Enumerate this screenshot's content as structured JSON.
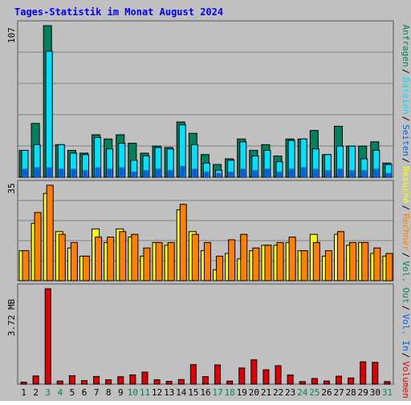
{
  "title": "Tages-Statistik im Monat August 2024",
  "colors": {
    "background": "#c0c0c0",
    "title": "#0000ff",
    "anfragen": "#00805c",
    "dateien": "#00e0ff",
    "seiten": "#0060e0",
    "besuche": "#ffff00",
    "rechner": "#ff8000",
    "volumen": "#e00000",
    "grid": "#808080",
    "weekend_day": "#008060",
    "weekday_day": "#000000"
  },
  "chart_data": [
    {
      "type": "bar",
      "panel": "top",
      "ymax_label": "107",
      "ymax": 107,
      "days": [
        "1",
        "2",
        "3",
        "4",
        "5",
        "6",
        "7",
        "8",
        "9",
        "10",
        "11",
        "12",
        "13",
        "14",
        "15",
        "16",
        "17",
        "18",
        "19",
        "20",
        "21",
        "22",
        "23",
        "24",
        "25",
        "26",
        "27",
        "28",
        "29",
        "30",
        "31"
      ],
      "weekend": [
        3,
        4,
        10,
        11,
        17,
        18,
        24,
        25,
        31
      ],
      "series": [
        {
          "name": "Anfragen",
          "values": [
            19,
            38,
            107,
            23,
            19,
            17,
            30,
            27,
            30,
            24,
            17,
            22,
            21,
            39,
            31,
            16,
            9,
            13,
            27,
            19,
            23,
            15,
            27,
            27,
            33,
            16,
            36,
            22,
            22,
            25,
            10
          ]
        },
        {
          "name": "Dateien",
          "values": [
            19,
            23,
            89,
            23,
            17,
            16,
            28,
            20,
            24,
            12,
            15,
            21,
            20,
            37,
            23,
            10,
            5,
            12,
            25,
            15,
            19,
            11,
            26,
            27,
            20,
            16,
            22,
            22,
            13,
            19,
            9
          ]
        },
        {
          "name": "Seiten",
          "values": [
            6,
            7,
            7,
            6,
            6,
            5,
            7,
            6,
            7,
            4,
            5,
            6,
            5,
            8,
            6,
            4,
            3,
            4,
            6,
            5,
            6,
            4,
            6,
            7,
            6,
            5,
            6,
            5,
            5,
            6,
            3
          ]
        }
      ],
      "legend": [
        "Anfragen",
        "Dateien",
        "Seiten"
      ]
    },
    {
      "type": "bar",
      "panel": "middle",
      "ymax_label": "35",
      "ymax": 35,
      "days": [
        "1",
        "2",
        "3",
        "4",
        "5",
        "6",
        "7",
        "8",
        "9",
        "10",
        "11",
        "12",
        "13",
        "14",
        "15",
        "16",
        "17",
        "18",
        "19",
        "20",
        "21",
        "22",
        "23",
        "24",
        "25",
        "26",
        "27",
        "28",
        "29",
        "30",
        "31"
      ],
      "series": [
        {
          "name": "Besuche",
          "values": [
            11,
            21,
            32,
            18,
            12,
            9,
            19,
            14,
            19,
            16,
            9,
            14,
            13,
            26,
            18,
            11,
            4,
            10,
            8,
            11,
            13,
            13,
            14,
            11,
            17,
            9,
            17,
            13,
            14,
            10,
            9
          ]
        },
        {
          "name": "Rechner",
          "values": [
            11,
            25,
            35,
            17,
            14,
            9,
            16,
            16,
            18,
            17,
            12,
            14,
            14,
            28,
            17,
            14,
            9,
            15,
            17,
            12,
            13,
            14,
            16,
            11,
            14,
            11,
            18,
            14,
            14,
            12,
            10
          ]
        }
      ],
      "legend": [
        "Besuche",
        "Rechner"
      ]
    },
    {
      "type": "bar",
      "panel": "bottom",
      "ymax_label": "3.72 MB",
      "ymax": 3.72,
      "days": [
        "1",
        "2",
        "3",
        "4",
        "5",
        "6",
        "7",
        "8",
        "9",
        "10",
        "11",
        "12",
        "13",
        "14",
        "15",
        "16",
        "17",
        "18",
        "19",
        "20",
        "21",
        "22",
        "23",
        "24",
        "25",
        "26",
        "27",
        "28",
        "29",
        "30",
        "31"
      ],
      "series": [
        {
          "name": "Volumen",
          "values": [
            0.08,
            0.32,
            3.72,
            0.12,
            0.33,
            0.14,
            0.3,
            0.17,
            0.29,
            0.36,
            0.47,
            0.17,
            0.11,
            0.18,
            0.76,
            0.29,
            0.75,
            0.12,
            0.63,
            0.95,
            0.56,
            0.72,
            0.36,
            0.1,
            0.22,
            0.12,
            0.31,
            0.24,
            0.87,
            0.85,
            0.1
          ]
        }
      ],
      "legend": [
        "Volumen",
        "Vol. In",
        "Vol. Out"
      ]
    }
  ],
  "right_legend_top": [
    "Anfragen",
    "Dateien",
    "Seiten",
    "Besuche",
    "Rechner",
    "Vol. Out",
    "Vol. In",
    "Volumen"
  ]
}
